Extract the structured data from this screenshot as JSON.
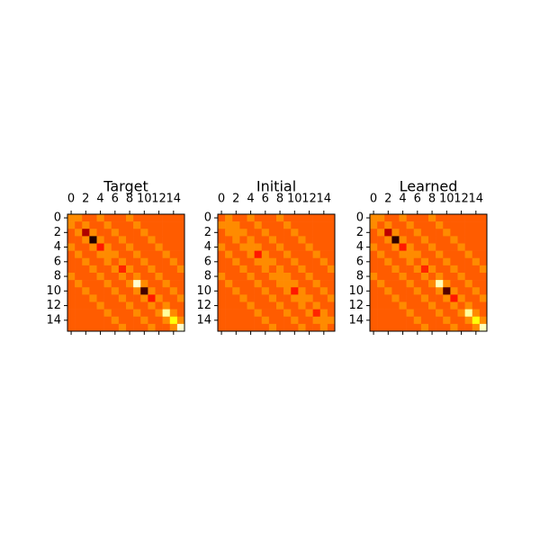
{
  "chart_data": [
    {
      "type": "heatmap",
      "title": "Target",
      "colormap": "hot",
      "xlim": [
        -0.5,
        15.5
      ],
      "ylim": [
        15.5,
        -0.5
      ],
      "xticks": [
        0,
        2,
        4,
        6,
        8,
        10,
        12,
        14
      ],
      "yticks": [
        0,
        2,
        4,
        6,
        8,
        10,
        12,
        14
      ],
      "matrix": [
        [
          0.57,
          0.57,
          0.5,
          0.5,
          0.57,
          0.5,
          0.5,
          0.5,
          0.57,
          0.5,
          0.5,
          0.5,
          0.5,
          0.5,
          0.5,
          0.5
        ],
        [
          0.57,
          0.5,
          0.57,
          0.5,
          0.5,
          0.57,
          0.5,
          0.5,
          0.5,
          0.57,
          0.5,
          0.5,
          0.5,
          0.5,
          0.5,
          0.5
        ],
        [
          0.5,
          0.57,
          0.25,
          0.57,
          0.5,
          0.5,
          0.57,
          0.5,
          0.5,
          0.5,
          0.57,
          0.5,
          0.5,
          0.5,
          0.5,
          0.5
        ],
        [
          0.5,
          0.5,
          0.57,
          0.05,
          0.57,
          0.5,
          0.5,
          0.57,
          0.5,
          0.5,
          0.5,
          0.57,
          0.5,
          0.5,
          0.5,
          0.5
        ],
        [
          0.57,
          0.5,
          0.5,
          0.57,
          0.4,
          0.57,
          0.5,
          0.5,
          0.57,
          0.5,
          0.5,
          0.5,
          0.57,
          0.5,
          0.5,
          0.5
        ],
        [
          0.5,
          0.57,
          0.5,
          0.5,
          0.57,
          0.57,
          0.57,
          0.5,
          0.5,
          0.57,
          0.5,
          0.5,
          0.5,
          0.57,
          0.5,
          0.5
        ],
        [
          0.5,
          0.5,
          0.57,
          0.5,
          0.5,
          0.57,
          0.5,
          0.57,
          0.5,
          0.5,
          0.57,
          0.5,
          0.5,
          0.5,
          0.57,
          0.5
        ],
        [
          0.5,
          0.5,
          0.5,
          0.57,
          0.5,
          0.5,
          0.57,
          0.42,
          0.57,
          0.5,
          0.5,
          0.57,
          0.5,
          0.5,
          0.5,
          0.57
        ],
        [
          0.57,
          0.5,
          0.5,
          0.5,
          0.57,
          0.5,
          0.5,
          0.57,
          0.5,
          0.57,
          0.5,
          0.5,
          0.57,
          0.5,
          0.5,
          0.5
        ],
        [
          0.5,
          0.57,
          0.5,
          0.5,
          0.5,
          0.57,
          0.5,
          0.5,
          0.57,
          0.95,
          0.57,
          0.5,
          0.5,
          0.57,
          0.5,
          0.5
        ],
        [
          0.5,
          0.5,
          0.57,
          0.5,
          0.5,
          0.5,
          0.57,
          0.5,
          0.5,
          0.57,
          0.1,
          0.57,
          0.5,
          0.5,
          0.57,
          0.5
        ],
        [
          0.5,
          0.5,
          0.5,
          0.57,
          0.5,
          0.5,
          0.5,
          0.57,
          0.5,
          0.5,
          0.57,
          0.4,
          0.57,
          0.5,
          0.5,
          0.57
        ],
        [
          0.5,
          0.5,
          0.5,
          0.5,
          0.57,
          0.5,
          0.5,
          0.5,
          0.57,
          0.5,
          0.5,
          0.57,
          0.5,
          0.57,
          0.5,
          0.5
        ],
        [
          0.5,
          0.5,
          0.5,
          0.5,
          0.5,
          0.57,
          0.5,
          0.5,
          0.5,
          0.57,
          0.5,
          0.5,
          0.57,
          0.9,
          0.57,
          0.5
        ],
        [
          0.5,
          0.5,
          0.5,
          0.5,
          0.5,
          0.5,
          0.57,
          0.5,
          0.5,
          0.5,
          0.57,
          0.5,
          0.5,
          0.57,
          0.75,
          0.57
        ],
        [
          0.5,
          0.5,
          0.5,
          0.5,
          0.5,
          0.5,
          0.5,
          0.57,
          0.5,
          0.5,
          0.5,
          0.57,
          0.5,
          0.5,
          0.57,
          0.95
        ]
      ]
    },
    {
      "type": "heatmap",
      "title": "Initial",
      "colormap": "hot",
      "xlim": [
        -0.5,
        15.5
      ],
      "ylim": [
        15.5,
        -0.5
      ],
      "xticks": [
        0,
        2,
        4,
        6,
        8,
        10,
        12,
        14
      ],
      "yticks": [
        0,
        2,
        4,
        6,
        8,
        10,
        12,
        14
      ],
      "matrix": [
        [
          0.5,
          0.57,
          0.5,
          0.5,
          0.57,
          0.5,
          0.5,
          0.5,
          0.57,
          0.5,
          0.5,
          0.5,
          0.5,
          0.5,
          0.5,
          0.5
        ],
        [
          0.57,
          0.57,
          0.57,
          0.5,
          0.5,
          0.57,
          0.5,
          0.5,
          0.5,
          0.57,
          0.5,
          0.5,
          0.5,
          0.5,
          0.5,
          0.5
        ],
        [
          0.5,
          0.57,
          0.57,
          0.57,
          0.5,
          0.5,
          0.57,
          0.5,
          0.5,
          0.5,
          0.57,
          0.5,
          0.5,
          0.5,
          0.5,
          0.5
        ],
        [
          0.5,
          0.5,
          0.57,
          0.5,
          0.57,
          0.5,
          0.5,
          0.57,
          0.5,
          0.5,
          0.5,
          0.57,
          0.5,
          0.5,
          0.5,
          0.5
        ],
        [
          0.57,
          0.5,
          0.5,
          0.57,
          0.57,
          0.57,
          0.5,
          0.5,
          0.57,
          0.5,
          0.5,
          0.5,
          0.57,
          0.5,
          0.5,
          0.5
        ],
        [
          0.5,
          0.57,
          0.5,
          0.5,
          0.57,
          0.4,
          0.57,
          0.5,
          0.5,
          0.57,
          0.5,
          0.5,
          0.5,
          0.57,
          0.5,
          0.5
        ],
        [
          0.5,
          0.5,
          0.57,
          0.5,
          0.5,
          0.57,
          0.57,
          0.57,
          0.5,
          0.5,
          0.57,
          0.5,
          0.5,
          0.5,
          0.57,
          0.5
        ],
        [
          0.5,
          0.5,
          0.5,
          0.57,
          0.5,
          0.5,
          0.57,
          0.5,
          0.57,
          0.5,
          0.5,
          0.57,
          0.5,
          0.5,
          0.5,
          0.57
        ],
        [
          0.57,
          0.5,
          0.5,
          0.5,
          0.57,
          0.5,
          0.5,
          0.57,
          0.57,
          0.57,
          0.5,
          0.5,
          0.57,
          0.5,
          0.5,
          0.5
        ],
        [
          0.5,
          0.57,
          0.5,
          0.5,
          0.5,
          0.57,
          0.5,
          0.5,
          0.57,
          0.57,
          0.57,
          0.5,
          0.5,
          0.57,
          0.5,
          0.5
        ],
        [
          0.5,
          0.5,
          0.57,
          0.5,
          0.5,
          0.5,
          0.57,
          0.5,
          0.5,
          0.57,
          0.4,
          0.57,
          0.5,
          0.5,
          0.57,
          0.5
        ],
        [
          0.5,
          0.5,
          0.5,
          0.57,
          0.5,
          0.5,
          0.5,
          0.57,
          0.5,
          0.5,
          0.57,
          0.57,
          0.57,
          0.5,
          0.5,
          0.57
        ],
        [
          0.5,
          0.5,
          0.5,
          0.5,
          0.57,
          0.5,
          0.5,
          0.5,
          0.57,
          0.5,
          0.5,
          0.57,
          0.5,
          0.57,
          0.5,
          0.5
        ],
        [
          0.5,
          0.5,
          0.5,
          0.5,
          0.5,
          0.57,
          0.5,
          0.5,
          0.5,
          0.57,
          0.5,
          0.5,
          0.57,
          0.42,
          0.57,
          0.5
        ],
        [
          0.5,
          0.5,
          0.5,
          0.5,
          0.5,
          0.5,
          0.57,
          0.5,
          0.5,
          0.5,
          0.57,
          0.5,
          0.5,
          0.57,
          0.57,
          0.57
        ],
        [
          0.5,
          0.5,
          0.5,
          0.5,
          0.5,
          0.5,
          0.5,
          0.57,
          0.5,
          0.5,
          0.5,
          0.57,
          0.5,
          0.5,
          0.57,
          0.5
        ]
      ]
    },
    {
      "type": "heatmap",
      "title": "Learned",
      "colormap": "hot",
      "xlim": [
        -0.5,
        15.5
      ],
      "ylim": [
        15.5,
        -0.5
      ],
      "xticks": [
        0,
        2,
        4,
        6,
        8,
        10,
        12,
        14
      ],
      "yticks": [
        0,
        2,
        4,
        6,
        8,
        10,
        12,
        14
      ],
      "matrix": [
        [
          0.57,
          0.57,
          0.5,
          0.5,
          0.57,
          0.5,
          0.5,
          0.5,
          0.57,
          0.5,
          0.5,
          0.5,
          0.5,
          0.5,
          0.5,
          0.5
        ],
        [
          0.57,
          0.5,
          0.57,
          0.5,
          0.5,
          0.57,
          0.5,
          0.5,
          0.5,
          0.57,
          0.5,
          0.5,
          0.5,
          0.5,
          0.5,
          0.5
        ],
        [
          0.5,
          0.57,
          0.27,
          0.57,
          0.5,
          0.5,
          0.57,
          0.5,
          0.5,
          0.5,
          0.57,
          0.5,
          0.5,
          0.5,
          0.5,
          0.5
        ],
        [
          0.5,
          0.5,
          0.57,
          0.07,
          0.57,
          0.5,
          0.5,
          0.57,
          0.5,
          0.5,
          0.5,
          0.57,
          0.5,
          0.5,
          0.5,
          0.5
        ],
        [
          0.57,
          0.5,
          0.5,
          0.57,
          0.4,
          0.57,
          0.5,
          0.5,
          0.57,
          0.5,
          0.5,
          0.5,
          0.57,
          0.5,
          0.5,
          0.5
        ],
        [
          0.5,
          0.57,
          0.5,
          0.5,
          0.57,
          0.57,
          0.57,
          0.5,
          0.5,
          0.57,
          0.5,
          0.5,
          0.5,
          0.57,
          0.5,
          0.5
        ],
        [
          0.5,
          0.5,
          0.57,
          0.5,
          0.5,
          0.57,
          0.5,
          0.57,
          0.5,
          0.5,
          0.57,
          0.5,
          0.5,
          0.5,
          0.57,
          0.5
        ],
        [
          0.5,
          0.5,
          0.5,
          0.57,
          0.5,
          0.5,
          0.57,
          0.42,
          0.57,
          0.5,
          0.5,
          0.57,
          0.5,
          0.5,
          0.5,
          0.57
        ],
        [
          0.57,
          0.5,
          0.5,
          0.5,
          0.57,
          0.5,
          0.5,
          0.57,
          0.5,
          0.57,
          0.5,
          0.5,
          0.57,
          0.5,
          0.5,
          0.5
        ],
        [
          0.5,
          0.57,
          0.5,
          0.5,
          0.5,
          0.57,
          0.5,
          0.5,
          0.57,
          0.93,
          0.57,
          0.5,
          0.5,
          0.57,
          0.5,
          0.5
        ],
        [
          0.5,
          0.5,
          0.57,
          0.5,
          0.5,
          0.5,
          0.57,
          0.5,
          0.5,
          0.57,
          0.12,
          0.57,
          0.5,
          0.5,
          0.57,
          0.5
        ],
        [
          0.5,
          0.5,
          0.5,
          0.57,
          0.5,
          0.5,
          0.5,
          0.57,
          0.5,
          0.5,
          0.57,
          0.4,
          0.57,
          0.5,
          0.5,
          0.57
        ],
        [
          0.5,
          0.5,
          0.5,
          0.5,
          0.57,
          0.5,
          0.5,
          0.5,
          0.57,
          0.5,
          0.5,
          0.57,
          0.5,
          0.57,
          0.5,
          0.5
        ],
        [
          0.5,
          0.5,
          0.5,
          0.5,
          0.5,
          0.57,
          0.5,
          0.5,
          0.5,
          0.57,
          0.5,
          0.5,
          0.57,
          0.9,
          0.57,
          0.5
        ],
        [
          0.5,
          0.5,
          0.5,
          0.5,
          0.5,
          0.5,
          0.57,
          0.5,
          0.5,
          0.5,
          0.57,
          0.5,
          0.5,
          0.57,
          0.75,
          0.57
        ],
        [
          0.5,
          0.5,
          0.5,
          0.5,
          0.5,
          0.5,
          0.5,
          0.57,
          0.5,
          0.5,
          0.5,
          0.57,
          0.5,
          0.5,
          0.57,
          0.93
        ]
      ]
    }
  ]
}
